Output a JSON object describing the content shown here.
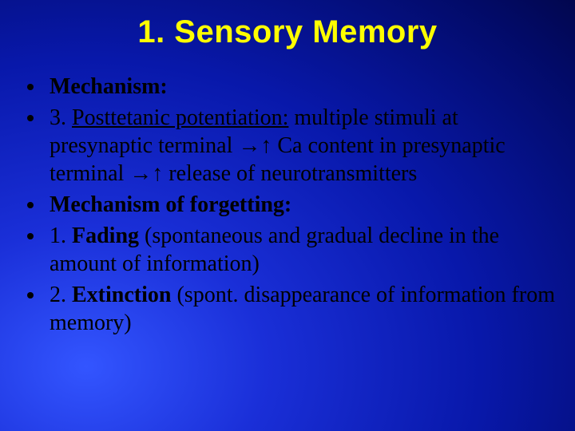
{
  "title": "1. Sensory Memory",
  "bullets": [
    {
      "html": "<span class='b'>Mechanism:</span>"
    },
    {
      "html": "3. <span class='u'>Posttetanic potentiation:</span> multiple stimuli at presynaptic terminal →↑ Ca content in presynaptic terminal →↑ release of neurotransmitters"
    },
    {
      "html": "<span class='b'>Mechanism of forgetting:</span>"
    },
    {
      "html": "1. <span class='b'>Fading</span> (spontaneous and gradual decline in the amount of information)"
    },
    {
      "html": "2. <span class='b'>Extinction</span> (spont. disappearance of information from memory)"
    }
  ],
  "style": {
    "title_color": "#ffff00",
    "title_fontsize": 40,
    "body_fontsize": 28,
    "bullet_color": "#000000",
    "text_color": "#000000",
    "background_gradient": [
      "#3355ff",
      "#1a2fd8",
      "#0818aa",
      "#020a66",
      "#010540"
    ]
  }
}
